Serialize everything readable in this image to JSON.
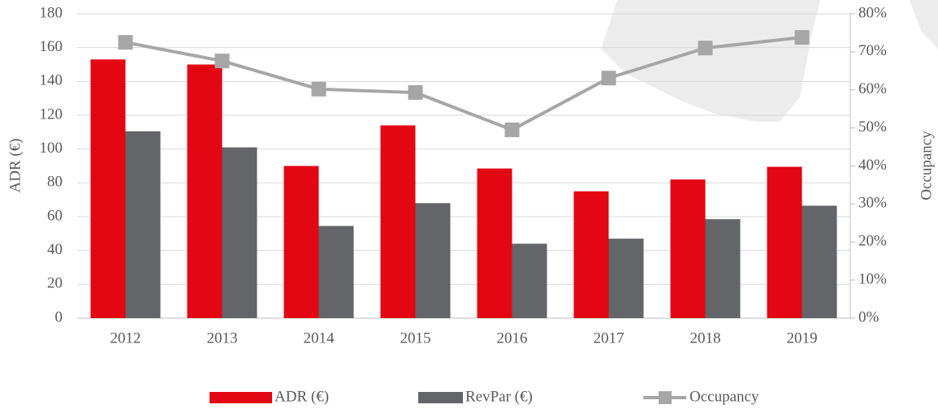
{
  "chart_data": {
    "type": "bar",
    "categories": [
      "2012",
      "2013",
      "2014",
      "2015",
      "2016",
      "2017",
      "2018",
      "2019"
    ],
    "series": [
      {
        "name": "ADR (€)",
        "color": "#e30613",
        "values": [
          153,
          150,
          90,
          114,
          88.5,
          75,
          82,
          89.5
        ]
      },
      {
        "name": "RevPar (€)",
        "color": "#636569",
        "values": [
          110.5,
          101,
          54.5,
          68,
          44,
          47,
          58.5,
          66.5
        ]
      },
      {
        "name": "Occupancy",
        "color": "#a6a6a6",
        "type": "line",
        "axis": "y2",
        "values": [
          72.5,
          67.6,
          60.2,
          59.3,
          49.5,
          63.1,
          71,
          73.8
        ]
      }
    ],
    "ylabel": "ADR (€)",
    "y2label": "Occupancy",
    "ylim": [
      0,
      180
    ],
    "yticks": [
      0,
      20,
      40,
      60,
      80,
      100,
      120,
      140,
      160,
      180
    ],
    "y2lim": [
      0,
      80
    ],
    "y2ticks": [
      {
        "value": 0,
        "label": "0%"
      },
      {
        "value": 10,
        "label": "10%"
      },
      {
        "value": 20,
        "label": "20%"
      },
      {
        "value": 30,
        "label": "30%"
      },
      {
        "value": 40,
        "label": "40%"
      },
      {
        "value": 50,
        "label": "50%"
      },
      {
        "value": 60,
        "label": "60%"
      },
      {
        "value": 70,
        "label": "70%"
      },
      {
        "value": 80,
        "label": "80%"
      }
    ],
    "grid": true,
    "legend": "bottom"
  }
}
